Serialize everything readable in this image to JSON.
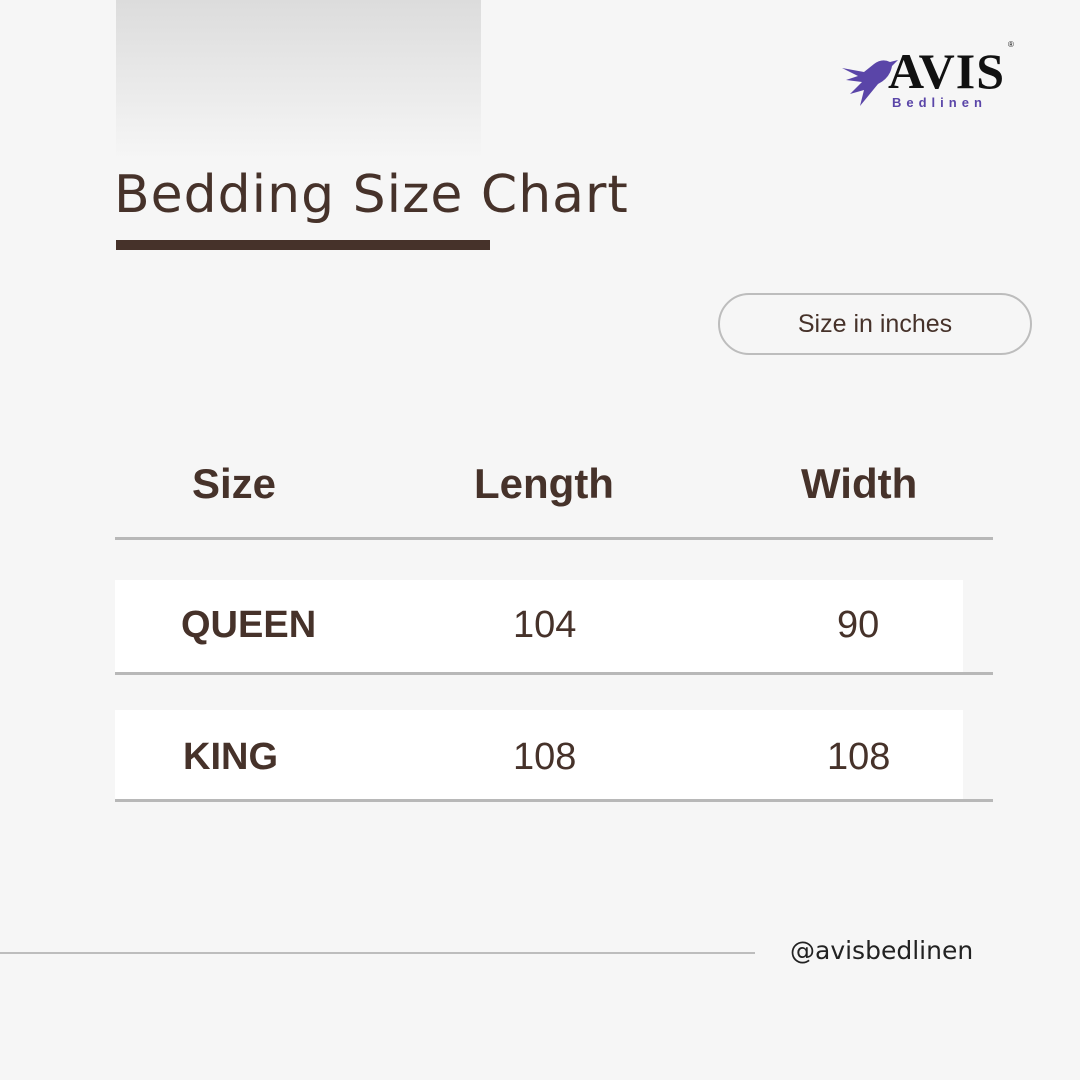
{
  "brand": {
    "name": "AVIS",
    "subtitle": "Bedlinen",
    "registered": "®",
    "color": "#5a45a8"
  },
  "title": "Bedding Size Chart",
  "units_label": "Size in inches",
  "table": {
    "headers": [
      "Size",
      "Length",
      "Width"
    ],
    "rows": [
      {
        "size": "QUEEN",
        "length": "104",
        "width": "90"
      },
      {
        "size": "KING",
        "length": "108",
        "width": "108"
      }
    ]
  },
  "footer": {
    "handle": "@avisbedlinen"
  },
  "colors": {
    "text": "#46322a",
    "background": "#f6f6f6"
  }
}
